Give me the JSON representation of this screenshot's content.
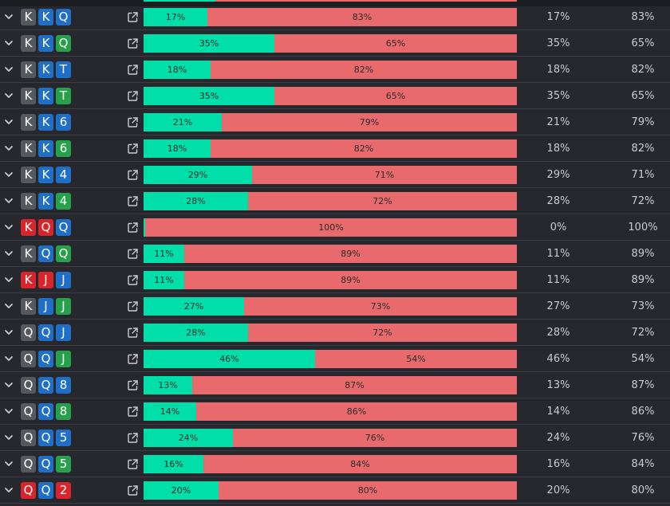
{
  "suit_colors": {
    "gray": "#55585e",
    "blue": "#1f6fc7",
    "green": "#26a04a",
    "red": "#d8252b"
  },
  "bar_colors": {
    "left": "#00dfaa",
    "right": "#e86a6c"
  },
  "icons": {
    "expand": "chevron-down-icon",
    "open": "external-link-icon"
  },
  "rows": [
    {
      "cards": [
        {
          "rank": "K",
          "suit": "gray"
        },
        {
          "rank": "K",
          "suit": "blue"
        },
        {
          "rank": "Q",
          "suit": "blue"
        }
      ],
      "left_pct": 17,
      "left_label": "17%",
      "right_label": "83%",
      "col_a": "17%",
      "col_b": "83%"
    },
    {
      "cards": [
        {
          "rank": "K",
          "suit": "gray"
        },
        {
          "rank": "K",
          "suit": "blue"
        },
        {
          "rank": "Q",
          "suit": "green"
        }
      ],
      "left_pct": 35,
      "left_label": "35%",
      "right_label": "65%",
      "col_a": "35%",
      "col_b": "65%"
    },
    {
      "cards": [
        {
          "rank": "K",
          "suit": "gray"
        },
        {
          "rank": "K",
          "suit": "blue"
        },
        {
          "rank": "T",
          "suit": "blue"
        }
      ],
      "left_pct": 18,
      "left_label": "18%",
      "right_label": "82%",
      "col_a": "18%",
      "col_b": "82%"
    },
    {
      "cards": [
        {
          "rank": "K",
          "suit": "gray"
        },
        {
          "rank": "K",
          "suit": "blue"
        },
        {
          "rank": "T",
          "suit": "green"
        }
      ],
      "left_pct": 35,
      "left_label": "35%",
      "right_label": "65%",
      "col_a": "35%",
      "col_b": "65%"
    },
    {
      "cards": [
        {
          "rank": "K",
          "suit": "gray"
        },
        {
          "rank": "K",
          "suit": "blue"
        },
        {
          "rank": "6",
          "suit": "blue"
        }
      ],
      "left_pct": 21,
      "left_label": "21%",
      "right_label": "79%",
      "col_a": "21%",
      "col_b": "79%"
    },
    {
      "cards": [
        {
          "rank": "K",
          "suit": "gray"
        },
        {
          "rank": "K",
          "suit": "blue"
        },
        {
          "rank": "6",
          "suit": "green"
        }
      ],
      "left_pct": 18,
      "left_label": "18%",
      "right_label": "82%",
      "col_a": "18%",
      "col_b": "82%"
    },
    {
      "cards": [
        {
          "rank": "K",
          "suit": "gray"
        },
        {
          "rank": "K",
          "suit": "blue"
        },
        {
          "rank": "4",
          "suit": "blue"
        }
      ],
      "left_pct": 29,
      "left_label": "29%",
      "right_label": "71%",
      "col_a": "29%",
      "col_b": "71%"
    },
    {
      "cards": [
        {
          "rank": "K",
          "suit": "gray"
        },
        {
          "rank": "K",
          "suit": "blue"
        },
        {
          "rank": "4",
          "suit": "green"
        }
      ],
      "left_pct": 28,
      "left_label": "28%",
      "right_label": "72%",
      "col_a": "28%",
      "col_b": "72%"
    },
    {
      "cards": [
        {
          "rank": "K",
          "suit": "red"
        },
        {
          "rank": "Q",
          "suit": "red"
        },
        {
          "rank": "Q",
          "suit": "blue"
        }
      ],
      "left_pct": 0.5,
      "left_label": "",
      "right_label": "100%",
      "col_a": "0%",
      "col_b": "100%"
    },
    {
      "cards": [
        {
          "rank": "K",
          "suit": "gray"
        },
        {
          "rank": "Q",
          "suit": "blue"
        },
        {
          "rank": "Q",
          "suit": "green"
        }
      ],
      "left_pct": 11,
      "left_label": "11%",
      "right_label": "89%",
      "col_a": "11%",
      "col_b": "89%"
    },
    {
      "cards": [
        {
          "rank": "K",
          "suit": "red"
        },
        {
          "rank": "J",
          "suit": "red"
        },
        {
          "rank": "J",
          "suit": "blue"
        }
      ],
      "left_pct": 11,
      "left_label": "11%",
      "right_label": "89%",
      "col_a": "11%",
      "col_b": "89%"
    },
    {
      "cards": [
        {
          "rank": "K",
          "suit": "gray"
        },
        {
          "rank": "J",
          "suit": "blue"
        },
        {
          "rank": "J",
          "suit": "green"
        }
      ],
      "left_pct": 27,
      "left_label": "27%",
      "right_label": "73%",
      "col_a": "27%",
      "col_b": "73%"
    },
    {
      "cards": [
        {
          "rank": "Q",
          "suit": "gray"
        },
        {
          "rank": "Q",
          "suit": "blue"
        },
        {
          "rank": "J",
          "suit": "blue"
        }
      ],
      "left_pct": 28,
      "left_label": "28%",
      "right_label": "72%",
      "col_a": "28%",
      "col_b": "72%"
    },
    {
      "cards": [
        {
          "rank": "Q",
          "suit": "gray"
        },
        {
          "rank": "Q",
          "suit": "blue"
        },
        {
          "rank": "J",
          "suit": "green"
        }
      ],
      "left_pct": 46,
      "left_label": "46%",
      "right_label": "54%",
      "col_a": "46%",
      "col_b": "54%"
    },
    {
      "cards": [
        {
          "rank": "Q",
          "suit": "gray"
        },
        {
          "rank": "Q",
          "suit": "blue"
        },
        {
          "rank": "8",
          "suit": "blue"
        }
      ],
      "left_pct": 13,
      "left_label": "13%",
      "right_label": "87%",
      "col_a": "13%",
      "col_b": "87%"
    },
    {
      "cards": [
        {
          "rank": "Q",
          "suit": "gray"
        },
        {
          "rank": "Q",
          "suit": "blue"
        },
        {
          "rank": "8",
          "suit": "green"
        }
      ],
      "left_pct": 14,
      "left_label": "14%",
      "right_label": "86%",
      "col_a": "14%",
      "col_b": "86%"
    },
    {
      "cards": [
        {
          "rank": "Q",
          "suit": "gray"
        },
        {
          "rank": "Q",
          "suit": "blue"
        },
        {
          "rank": "5",
          "suit": "blue"
        }
      ],
      "left_pct": 24,
      "left_label": "24%",
      "right_label": "76%",
      "col_a": "24%",
      "col_b": "76%"
    },
    {
      "cards": [
        {
          "rank": "Q",
          "suit": "gray"
        },
        {
          "rank": "Q",
          "suit": "blue"
        },
        {
          "rank": "5",
          "suit": "green"
        }
      ],
      "left_pct": 16,
      "left_label": "16%",
      "right_label": "84%",
      "col_a": "16%",
      "col_b": "84%"
    },
    {
      "cards": [
        {
          "rank": "Q",
          "suit": "red"
        },
        {
          "rank": "Q",
          "suit": "blue"
        },
        {
          "rank": "2",
          "suit": "red"
        }
      ],
      "left_pct": 20,
      "left_label": "20%",
      "right_label": "80%",
      "col_a": "20%",
      "col_b": "80%"
    }
  ]
}
